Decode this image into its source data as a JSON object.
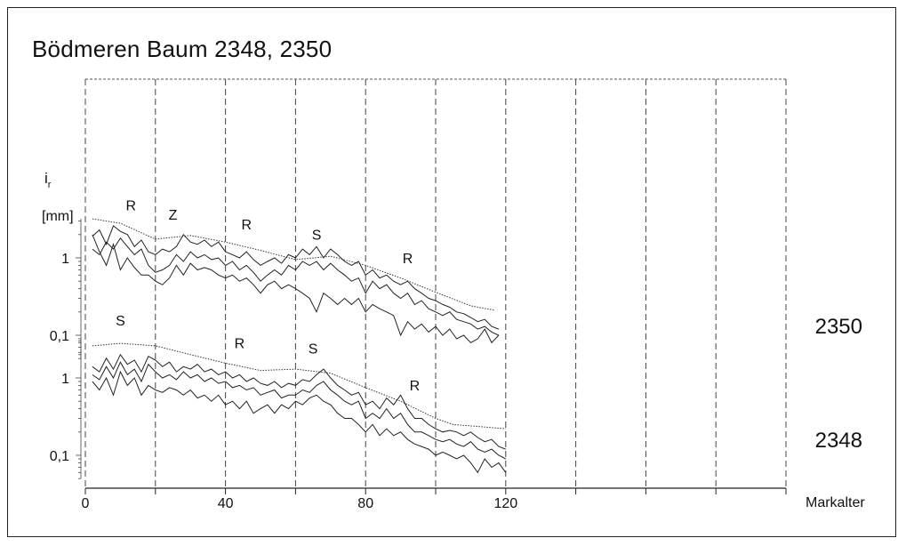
{
  "chart_data": {
    "type": "line",
    "title": "Bödmeren Baum 2348, 2350",
    "xlabel": "Markalter",
    "ylabel_symbol": "i",
    "ylabel_subscript": "r",
    "ylabel_unit": "[mm]",
    "xlim": [
      0,
      200
    ],
    "x_ticks": [
      0,
      40,
      80,
      120
    ],
    "x_grid": [
      0,
      20,
      40,
      60,
      80,
      100,
      120,
      140,
      160,
      180,
      200
    ],
    "grid": true,
    "y_scale": "log",
    "panels": [
      {
        "name": "2350",
        "y_ticks": [
          {
            "label": "1",
            "value": 1
          },
          {
            "label": "0,1",
            "value": 0.1
          }
        ],
        "curve_labels": [
          {
            "text": "R",
            "x": 13
          },
          {
            "text": "Z",
            "x": 25
          },
          {
            "text": "R",
            "x": 46
          },
          {
            "text": "S",
            "x": 66
          },
          {
            "text": "R",
            "x": 92
          }
        ],
        "envelope": {
          "x": [
            2,
            10,
            20,
            30,
            40,
            50,
            60,
            70,
            80,
            90,
            100,
            110,
            117
          ],
          "y": [
            3.2,
            2.8,
            1.75,
            1.95,
            1.6,
            1.25,
            0.95,
            1.05,
            0.8,
            0.55,
            0.36,
            0.24,
            0.21
          ]
        },
        "series": [
          {
            "x": [
              2,
              4,
              6,
              8,
              10,
              12,
              14,
              16,
              18,
              20,
              22,
              24,
              26,
              28,
              30,
              32,
              34,
              36,
              38,
              40,
              42,
              44,
              46,
              48,
              50,
              52,
              54,
              56,
              58,
              60,
              62,
              64,
              66,
              68,
              70,
              72,
              74,
              76,
              78,
              80,
              82,
              84,
              86,
              88,
              90,
              92,
              94,
              96,
              98,
              100,
              102,
              104,
              106,
              108,
              110,
              112,
              114,
              116,
              118
            ],
            "y": [
              1.9,
              2.3,
              1.5,
              2.6,
              2.2,
              2.0,
              1.4,
              1.7,
              1.2,
              1.1,
              1.3,
              1.2,
              1.4,
              2.0,
              1.6,
              1.5,
              1.7,
              1.4,
              1.6,
              1.2,
              1.1,
              1.0,
              1.2,
              0.95,
              0.8,
              0.9,
              1.0,
              0.85,
              1.1,
              1.0,
              1.3,
              1.1,
              1.4,
              1.0,
              1.3,
              1.1,
              0.9,
              0.8,
              0.9,
              0.6,
              0.7,
              0.55,
              0.6,
              0.5,
              0.45,
              0.5,
              0.4,
              0.35,
              0.3,
              0.28,
              0.25,
              0.23,
              0.2,
              0.19,
              0.17,
              0.15,
              0.16,
              0.13,
              0.12
            ]
          },
          {
            "x": [
              2,
              4,
              6,
              8,
              10,
              12,
              14,
              16,
              18,
              20,
              22,
              24,
              26,
              28,
              30,
              32,
              34,
              36,
              38,
              40,
              42,
              44,
              46,
              48,
              50,
              52,
              54,
              56,
              58,
              60,
              62,
              64,
              66,
              68,
              70,
              72,
              74,
              76,
              78,
              80,
              82,
              84,
              86,
              88,
              90,
              92,
              94,
              96,
              98,
              100,
              102,
              104,
              106,
              108,
              110,
              112,
              114,
              116,
              118
            ],
            "y": [
              1.3,
              1.1,
              1.6,
              1.3,
              1.8,
              1.4,
              1.1,
              1.3,
              0.8,
              0.65,
              0.7,
              0.8,
              1.1,
              0.9,
              1.2,
              1.0,
              1.1,
              0.95,
              1.0,
              0.8,
              0.9,
              0.7,
              0.8,
              0.65,
              0.5,
              0.6,
              0.7,
              0.6,
              0.8,
              0.7,
              0.9,
              0.8,
              0.9,
              0.7,
              0.85,
              0.7,
              0.6,
              0.5,
              0.55,
              0.35,
              0.5,
              0.4,
              0.45,
              0.35,
              0.3,
              0.35,
              0.25,
              0.28,
              0.22,
              0.2,
              0.18,
              0.2,
              0.16,
              0.15,
              0.14,
              0.12,
              0.13,
              0.11,
              0.1
            ]
          },
          {
            "x": [
              2,
              4,
              6,
              8,
              10,
              12,
              14,
              16,
              18,
              20,
              22,
              24,
              26,
              28,
              30,
              32,
              34,
              36,
              38,
              40,
              42,
              44,
              46,
              48,
              50,
              52,
              54,
              56,
              58,
              60,
              62,
              64,
              66,
              68,
              70,
              72,
              74,
              76,
              78,
              80,
              82,
              84,
              86,
              88,
              90,
              92,
              94,
              96,
              98,
              100,
              102,
              104,
              106,
              108,
              110,
              112,
              114,
              116,
              118
            ],
            "y": [
              2.0,
              1.2,
              0.8,
              1.5,
              0.7,
              1.0,
              0.75,
              0.6,
              0.6,
              0.5,
              0.45,
              0.55,
              0.8,
              0.6,
              0.85,
              0.7,
              0.75,
              0.7,
              0.6,
              0.55,
              0.6,
              0.5,
              0.55,
              0.45,
              0.35,
              0.45,
              0.5,
              0.4,
              0.45,
              0.4,
              0.35,
              0.3,
              0.2,
              0.35,
              0.3,
              0.25,
              0.3,
              0.25,
              0.3,
              0.2,
              0.25,
              0.22,
              0.2,
              0.18,
              0.1,
              0.15,
              0.12,
              0.14,
              0.11,
              0.13,
              0.1,
              0.12,
              0.09,
              0.1,
              0.08,
              0.09,
              0.12,
              0.08,
              0.1
            ]
          }
        ]
      },
      {
        "name": "2348",
        "y_ticks": [
          {
            "label": "1",
            "value": 1
          },
          {
            "label": "0,1",
            "value": 0.1
          }
        ],
        "curve_labels": [
          {
            "text": "S",
            "x": 10
          },
          {
            "text": "R",
            "x": 44
          },
          {
            "text": "S",
            "x": 65
          },
          {
            "text": "R",
            "x": 94
          }
        ],
        "envelope": {
          "x": [
            2,
            10,
            20,
            30,
            40,
            50,
            60,
            70,
            80,
            90,
            100,
            105,
            110,
            120
          ],
          "y": [
            2.6,
            2.8,
            2.6,
            2.0,
            1.55,
            1.25,
            1.3,
            1.15,
            0.75,
            0.5,
            0.3,
            0.25,
            0.24,
            0.22
          ]
        },
        "series": [
          {
            "x": [
              2,
              4,
              6,
              8,
              10,
              12,
              14,
              16,
              18,
              20,
              22,
              24,
              26,
              28,
              30,
              32,
              34,
              36,
              38,
              40,
              42,
              44,
              46,
              48,
              50,
              52,
              54,
              56,
              58,
              60,
              62,
              64,
              66,
              68,
              70,
              72,
              74,
              76,
              78,
              80,
              82,
              84,
              86,
              88,
              90,
              92,
              94,
              96,
              98,
              100,
              102,
              104,
              106,
              108,
              110,
              112,
              114,
              116,
              118,
              120
            ],
            "y": [
              1.4,
              1.2,
              1.8,
              1.3,
              2.0,
              1.5,
              1.7,
              1.2,
              1.9,
              1.7,
              1.4,
              1.6,
              1.2,
              1.4,
              1.3,
              1.5,
              1.2,
              1.3,
              1.1,
              1.2,
              1.0,
              1.1,
              0.9,
              1.0,
              0.85,
              0.8,
              0.9,
              0.75,
              0.85,
              0.8,
              0.95,
              0.9,
              1.1,
              1.3,
              1.0,
              0.8,
              0.7,
              0.6,
              0.65,
              0.45,
              0.5,
              0.4,
              0.55,
              0.45,
              0.6,
              0.4,
              0.3,
              0.3,
              0.25,
              0.22,
              0.2,
              0.21,
              0.2,
              0.18,
              0.2,
              0.17,
              0.15,
              0.16,
              0.13,
              0.12
            ]
          },
          {
            "x": [
              2,
              4,
              6,
              8,
              10,
              12,
              14,
              16,
              18,
              20,
              22,
              24,
              26,
              28,
              30,
              32,
              34,
              36,
              38,
              40,
              42,
              44,
              46,
              48,
              50,
              52,
              54,
              56,
              58,
              60,
              62,
              64,
              66,
              68,
              70,
              72,
              74,
              76,
              78,
              80,
              82,
              84,
              86,
              88,
              90,
              92,
              94,
              96,
              98,
              100,
              102,
              104,
              106,
              108,
              110,
              112,
              114,
              116,
              118,
              120
            ],
            "y": [
              1.1,
              0.95,
              1.4,
              1.0,
              1.6,
              1.1,
              1.3,
              0.9,
              1.5,
              1.2,
              1.0,
              1.1,
              0.95,
              1.2,
              1.0,
              1.1,
              0.9,
              1.0,
              0.85,
              0.9,
              0.75,
              0.8,
              0.7,
              0.75,
              0.6,
              0.65,
              0.7,
              0.55,
              0.6,
              0.6,
              0.7,
              0.65,
              0.8,
              0.9,
              0.7,
              0.6,
              0.5,
              0.45,
              0.5,
              0.3,
              0.35,
              0.3,
              0.4,
              0.3,
              0.35,
              0.25,
              0.2,
              0.2,
              0.18,
              0.16,
              0.15,
              0.16,
              0.14,
              0.13,
              0.15,
              0.12,
              0.11,
              0.12,
              0.1,
              0.09
            ]
          },
          {
            "x": [
              2,
              4,
              6,
              8,
              10,
              12,
              14,
              16,
              18,
              20,
              22,
              24,
              26,
              28,
              30,
              32,
              34,
              36,
              38,
              40,
              42,
              44,
              46,
              48,
              50,
              52,
              54,
              56,
              58,
              60,
              62,
              64,
              66,
              68,
              70,
              72,
              74,
              76,
              78,
              80,
              82,
              84,
              86,
              88,
              90,
              92,
              94,
              96,
              98,
              100,
              102,
              104,
              106,
              108,
              110,
              112,
              114,
              116,
              118,
              120
            ],
            "y": [
              0.9,
              0.7,
              1.0,
              0.6,
              1.2,
              0.8,
              1.0,
              0.6,
              0.8,
              0.7,
              0.65,
              0.75,
              0.7,
              0.6,
              0.7,
              0.55,
              0.6,
              0.5,
              0.6,
              0.45,
              0.5,
              0.4,
              0.5,
              0.35,
              0.4,
              0.45,
              0.35,
              0.45,
              0.4,
              0.5,
              0.45,
              0.55,
              0.6,
              0.5,
              0.45,
              0.35,
              0.3,
              0.3,
              0.25,
              0.2,
              0.25,
              0.18,
              0.22,
              0.18,
              0.2,
              0.16,
              0.14,
              0.13,
              0.12,
              0.1,
              0.11,
              0.1,
              0.09,
              0.1,
              0.08,
              0.06,
              0.09,
              0.07,
              0.08,
              0.06
            ]
          }
        ]
      }
    ]
  }
}
